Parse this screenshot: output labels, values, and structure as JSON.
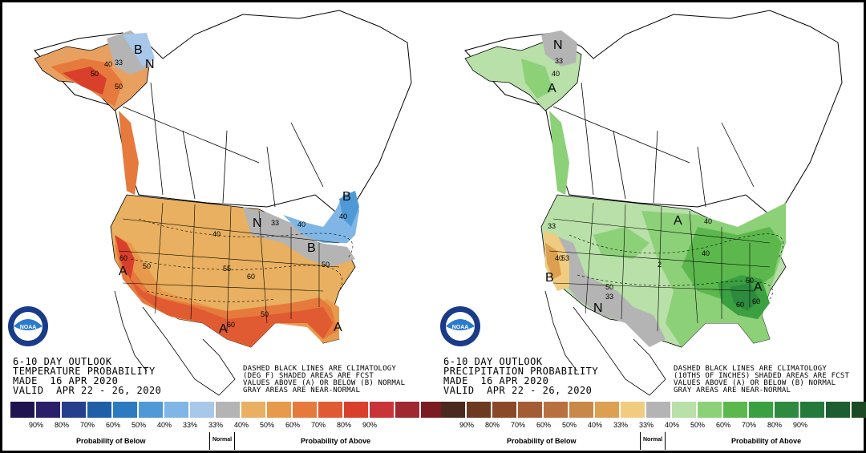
{
  "left": {
    "title_lines": [
      "6-10 DAY OUTLOOK",
      "TEMPERATURE PROBABILITY",
      "MADE  16 APR 2020",
      "VALID  APR 22 - 26, 2020"
    ],
    "note_lines": [
      "DASHED BLACK LINES ARE CLIMATOLOGY",
      "(DEG F) SHADED AREAS ARE FCST",
      "VALUES ABOVE (A) OR BELOW (B) NORMAL",
      "GRAY AREAS ARE NEAR-NORMAL"
    ],
    "legend_colors": [
      "#1f1450",
      "#2b1f6a",
      "#263f8c",
      "#1f5fa8",
      "#2c7bc0",
      "#4f9ad6",
      "#7fb6e6",
      "#a8c8ea",
      "#b4b4b4",
      "#e8b060",
      "#e89a4c",
      "#e67a3c",
      "#e05a32",
      "#d8402c",
      "#c83438",
      "#a02830",
      "#7a1c22"
    ],
    "legend_ticks": [
      "90%",
      "80%",
      "70%",
      "60%",
      "50%",
      "40%",
      "33%",
      "33%",
      "40%",
      "50%",
      "60%",
      "70%",
      "80%",
      "90%"
    ],
    "caption_below": "Probability of Below",
    "caption_normal": "Normal",
    "caption_above": "Probability of Above",
    "map_labels": [
      "B",
      "N",
      "40",
      "33",
      "50",
      "50",
      "A",
      "40",
      "60",
      "50",
      "A",
      "50",
      "55",
      "60",
      "50",
      "A",
      "60",
      "A",
      "N",
      "33",
      "40",
      "B",
      "40",
      "50",
      "60",
      "50",
      "40",
      "B",
      "50",
      "60"
    ]
  },
  "right": {
    "title_lines": [
      "6-10 DAY OUTLOOK",
      "PRECIPITATION PROBABILITY",
      "MADE  16 APR 2020",
      "VALID  APR 22 - 26, 2020"
    ],
    "note_lines": [
      "DASHED BLACK LINES ARE CLIMATOLOGY",
      "(10THS OF INCHES) SHADED AREAS ARE FCST",
      "VALUES ABOVE (A) OR BELOW (B) NORMAL",
      "GRAY AREAS ARE NEAR-NORMAL"
    ],
    "legend_colors": [
      "#4a2a1c",
      "#6b3a20",
      "#8a4a2a",
      "#a45c34",
      "#b87040",
      "#c88848",
      "#dca050",
      "#f0cc80",
      "#b4b4b4",
      "#b8e0a8",
      "#8cd078",
      "#5cb84c",
      "#3aa040",
      "#2e8a3e",
      "#247a3a",
      "#1c5e30",
      "#1c4a24"
    ],
    "legend_ticks": [
      "90%",
      "80%",
      "70%",
      "60%",
      "50%",
      "40%",
      "33%",
      "33%",
      "40%",
      "50%",
      "60%",
      "70%",
      "80%",
      "90%"
    ],
    "caption_below": "Probability of Below",
    "caption_normal": "Normal",
    "caption_above": "Probability of Above",
    "map_labels": [
      "N",
      "33",
      "40",
      "A",
      "33",
      "B",
      "40",
      "53",
      "N",
      "50",
      "33",
      "A",
      "40",
      "2",
      "A",
      "50",
      "60",
      "60",
      "40"
    ]
  },
  "logo_text": "NOAA"
}
